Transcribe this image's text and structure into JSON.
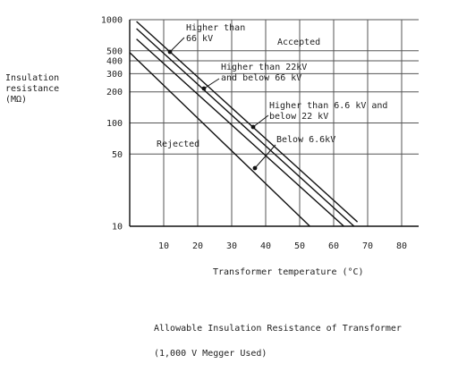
{
  "chart_data": {
    "type": "line",
    "title": "",
    "xlabel": "Transformer temperature (°C)",
    "ylabel_lines": [
      "Insulation",
      "resistance",
      "(MΩ)"
    ],
    "y_scale": "log",
    "xlim": [
      0,
      85
    ],
    "ylim": [
      10,
      1000
    ],
    "x_ticks": [
      10,
      20,
      30,
      40,
      50,
      60,
      70,
      80
    ],
    "y_ticks": [
      10,
      50,
      100,
      200,
      300,
      400,
      500,
      1000
    ],
    "region_labels": {
      "accepted": "Accepted",
      "rejected": "Rejected"
    },
    "series": [
      {
        "name": "Higher than 66 kV",
        "label_lines": [
          "Higher than",
          "66 kV"
        ],
        "x": [
          2,
          67
        ],
        "y": [
          960,
          11
        ]
      },
      {
        "name": "Higher than 22kV and below 66 kV",
        "label_lines": [
          "Higher than 22kV",
          "and below 66 kV"
        ],
        "x": [
          2,
          66
        ],
        "y": [
          820,
          10
        ]
      },
      {
        "name": "Higher than 6.6 kV and below 22 kV",
        "label_lines": [
          "Higher than 6.6 kV and",
          "below 22 kV"
        ],
        "x": [
          2,
          63
        ],
        "y": [
          650,
          10
        ]
      },
      {
        "name": "Below 6.6kV",
        "label_lines": [
          "Below 6.6kV"
        ],
        "x": [
          0,
          53
        ],
        "y": [
          480,
          10
        ]
      }
    ],
    "grid": true,
    "legend": "none"
  },
  "caption": {
    "line1": "Allowable Insulation Resistance of Transformer",
    "line2": "(1,000 V Megger Used)"
  }
}
